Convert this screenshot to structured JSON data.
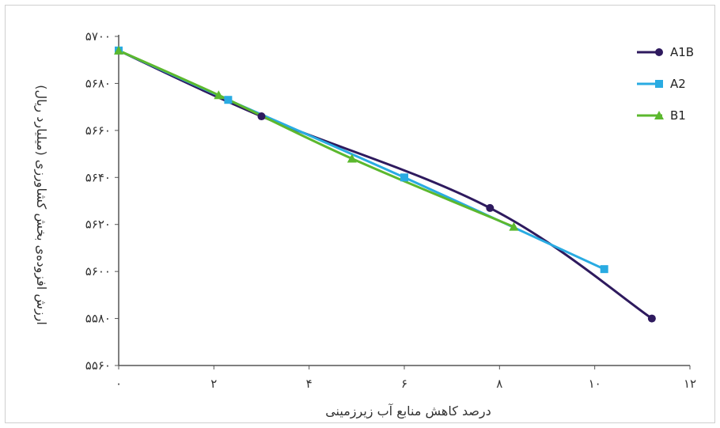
{
  "chart_data": {
    "type": "line",
    "xlabel": "درصد کاهش منابع آب زیرزمینی",
    "ylabel": "ارزش افزوده‌ی بخش کشاورزی (میلیارد ریال)",
    "x_ticks": [
      "۰",
      "۲",
      "۴",
      "۶",
      "۸",
      "۱۰",
      "۱۲"
    ],
    "x_tick_values": [
      0,
      2,
      4,
      6,
      8,
      10,
      12
    ],
    "y_ticks": [
      "۵۵۶۰",
      "۵۵۸۰",
      "۵۶۰۰",
      "۵۶۲۰",
      "۵۶۴۰",
      "۵۶۶۰",
      "۵۶۸۰",
      "۵۷۰۰"
    ],
    "y_tick_values": [
      5560,
      5580,
      5600,
      5620,
      5640,
      5660,
      5680,
      5700
    ],
    "xlim": [
      0,
      12
    ],
    "ylim": [
      5560,
      5700
    ],
    "grid": false,
    "legend_position": "top-right",
    "series": [
      {
        "name": "A1B",
        "color": "#2e1a5e",
        "marker": "circle",
        "points": [
          [
            0,
            5694
          ],
          [
            3,
            5666
          ],
          [
            7.8,
            5627
          ],
          [
            11.2,
            5580
          ]
        ]
      },
      {
        "name": "A2",
        "color": "#29abe2",
        "marker": "square",
        "points": [
          [
            0,
            5694
          ],
          [
            2.3,
            5673
          ],
          [
            6,
            5640
          ],
          [
            10.2,
            5601
          ]
        ]
      },
      {
        "name": "B1",
        "color": "#5cb82e",
        "marker": "triangle",
        "points": [
          [
            0,
            5694
          ],
          [
            2.1,
            5675
          ],
          [
            4.9,
            5648
          ],
          [
            8.3,
            5619
          ]
        ]
      }
    ]
  }
}
